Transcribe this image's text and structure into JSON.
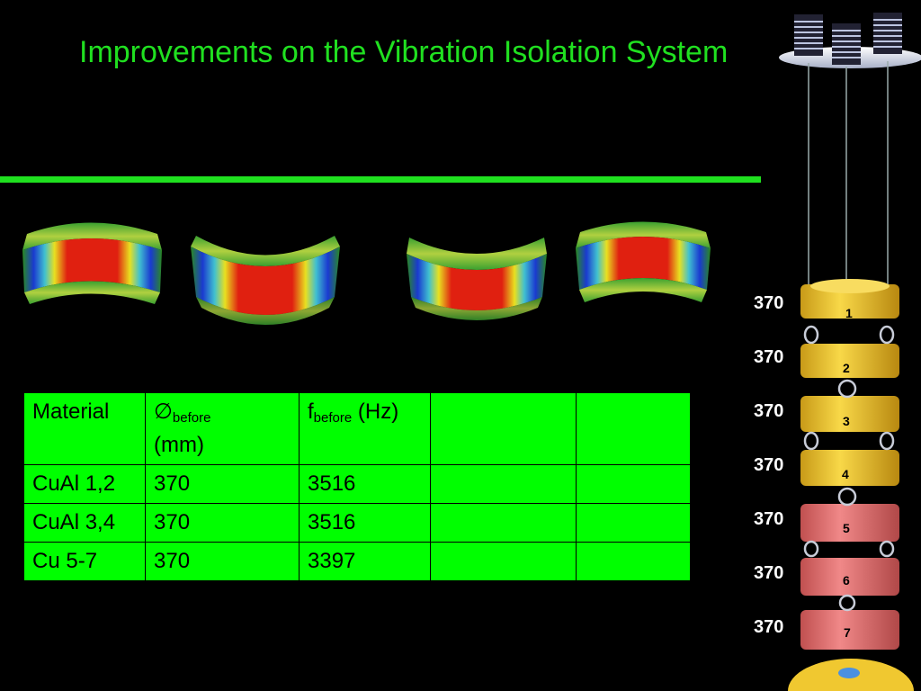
{
  "slide": {
    "title": "Improvements on the Vibration Isolation System"
  },
  "table": {
    "header": {
      "material": "Material",
      "diameter_symbol": "∅",
      "diameter_sub": "before",
      "diameter_unit": "(mm)",
      "freq_symbol": "f",
      "freq_sub": "before",
      "freq_unit": "(Hz)",
      "col4": "",
      "col5": ""
    },
    "rows": [
      {
        "material": "CuAl 1,2",
        "diameter": "370",
        "frequency": "3516",
        "col4": "",
        "col5": ""
      },
      {
        "material": "CuAl 3,4",
        "diameter": "370",
        "frequency": "3516",
        "col4": "",
        "col5": ""
      },
      {
        "material": "Cu 5-7",
        "diameter": "370",
        "frequency": "3397",
        "col4": "",
        "col5": ""
      }
    ]
  },
  "stack": {
    "diameter_labels": [
      "370",
      "370",
      "370",
      "370",
      "370",
      "370",
      "370"
    ],
    "stage_numbers": [
      "1",
      "2",
      "3",
      "4",
      "5",
      "6",
      "7"
    ],
    "colors": {
      "cual": "#f0c832",
      "cu": "#e87070"
    }
  }
}
